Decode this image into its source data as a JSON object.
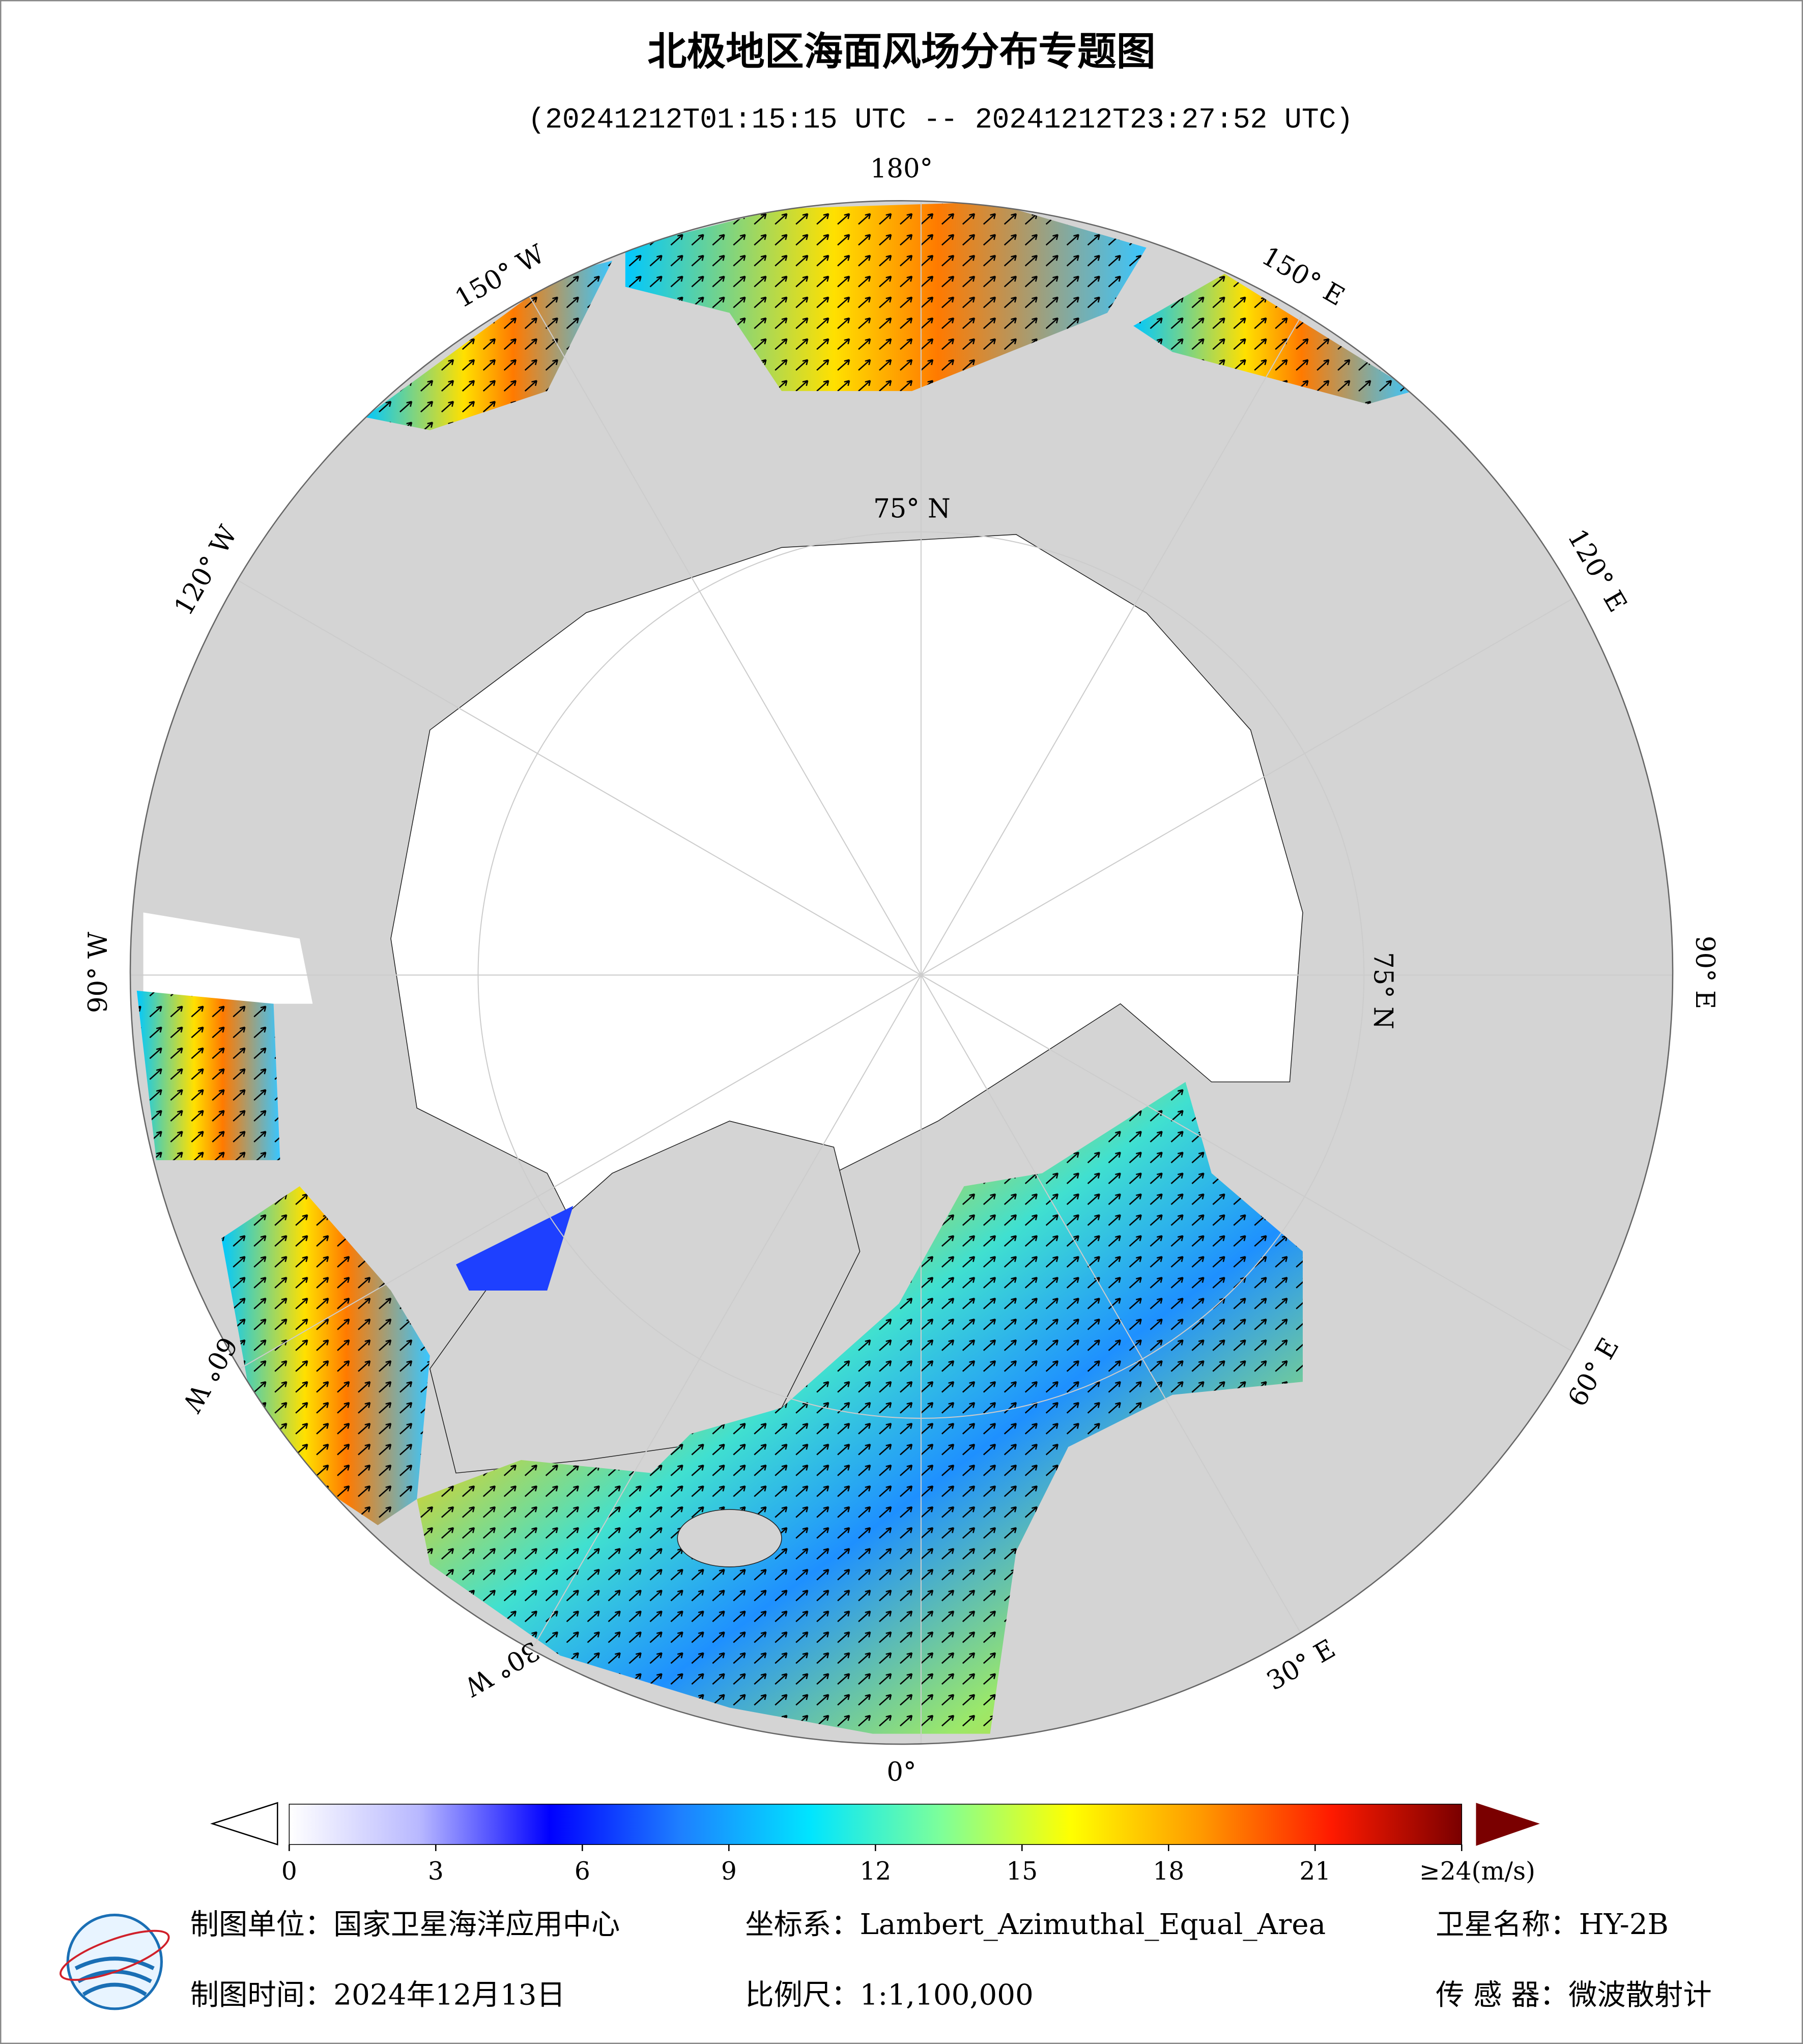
{
  "header": {
    "title": "北极地区海面风场分布专题图",
    "subtitle": "(20241212T01:15:15 UTC -- 20241212T23:27:52 UTC)"
  },
  "map": {
    "longitudes": [
      {
        "value": 180,
        "label": "180°"
      },
      {
        "value": -150,
        "label": "150° W"
      },
      {
        "value": -120,
        "label": "120° W"
      },
      {
        "value": -90,
        "label": "90° W"
      },
      {
        "value": -60,
        "label": "60° W"
      },
      {
        "value": -30,
        "label": "30° W"
      },
      {
        "value": 0,
        "label": "0°"
      },
      {
        "value": 30,
        "label": "30° E"
      },
      {
        "value": 60,
        "label": "60° E"
      },
      {
        "value": 90,
        "label": "90° E"
      },
      {
        "value": 120,
        "label": "120° E"
      },
      {
        "value": 150,
        "label": "150° E"
      }
    ],
    "lat_label": "75° N"
  },
  "colorbar": {
    "xlim": [
      0,
      24
    ],
    "ticks": [
      0,
      3,
      6,
      9,
      12,
      15,
      18,
      21,
      {
        "value": 24,
        "label": "≥24(m/s)"
      }
    ],
    "colors": [
      "#ffffff",
      "#b8b8ff",
      "#0000ff",
      "#1e7fff",
      "#00e5ff",
      "#7dff9a",
      "#ffff00",
      "#ff9900",
      "#ff1a00",
      "#7a0000"
    ]
  },
  "footer": {
    "unit": "制图单位：国家卫星海洋应用中心",
    "crs": "坐标系：Lambert_Azimuthal_Equal_Area",
    "satellite": "卫星名称：HY-2B",
    "date": "制图时间：2024年12月13日",
    "scale": "比例尺：1:1,100,000",
    "sensor": "传 感 器：微波散射计"
  }
}
